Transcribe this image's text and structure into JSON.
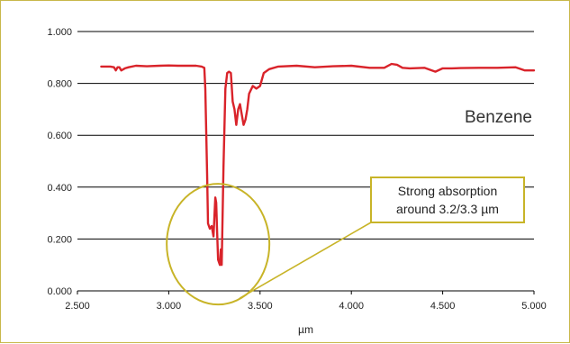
{
  "chart_data": {
    "type": "line",
    "title": "",
    "xlabel": "µm",
    "ylabel": "",
    "xlim": [
      2.5,
      5.0
    ],
    "ylim": [
      0.0,
      1.0
    ],
    "x_ticks": [
      "2.500",
      "3.000",
      "3.500",
      "4.000",
      "4.500",
      "5.000"
    ],
    "y_ticks": [
      "0.000",
      "0.200",
      "0.400",
      "0.600",
      "0.800",
      "1.000"
    ],
    "grid": "horizontal",
    "series_label": "Benzene",
    "series": [
      {
        "name": "Benzene",
        "color": "#d9232a",
        "x": [
          2.63,
          2.68,
          2.7,
          2.71,
          2.72,
          2.73,
          2.74,
          2.76,
          2.78,
          2.82,
          2.88,
          2.95,
          3.0,
          3.05,
          3.1,
          3.15,
          3.18,
          3.195,
          3.2,
          3.21,
          3.215,
          3.225,
          3.235,
          3.245,
          3.255,
          3.26,
          3.265,
          3.27,
          3.275,
          3.28,
          3.285,
          3.29,
          3.3,
          3.31,
          3.32,
          3.33,
          3.34,
          3.35,
          3.36,
          3.37,
          3.38,
          3.39,
          3.4,
          3.41,
          3.42,
          3.43,
          3.44,
          3.46,
          3.48,
          3.5,
          3.52,
          3.55,
          3.6,
          3.7,
          3.8,
          3.9,
          4.0,
          4.1,
          4.18,
          4.22,
          4.25,
          4.28,
          4.32,
          4.4,
          4.46,
          4.5,
          4.55,
          4.6,
          4.7,
          4.8,
          4.9,
          4.95,
          5.0
        ],
        "values": [
          0.865,
          0.865,
          0.862,
          0.85,
          0.862,
          0.862,
          0.85,
          0.858,
          0.862,
          0.868,
          0.866,
          0.868,
          0.869,
          0.868,
          0.868,
          0.868,
          0.865,
          0.86,
          0.78,
          0.45,
          0.26,
          0.24,
          0.25,
          0.21,
          0.36,
          0.34,
          0.23,
          0.12,
          0.11,
          0.1,
          0.16,
          0.1,
          0.48,
          0.78,
          0.84,
          0.845,
          0.84,
          0.73,
          0.7,
          0.64,
          0.7,
          0.72,
          0.68,
          0.64,
          0.66,
          0.7,
          0.76,
          0.79,
          0.78,
          0.79,
          0.84,
          0.855,
          0.865,
          0.868,
          0.862,
          0.866,
          0.868,
          0.86,
          0.86,
          0.875,
          0.872,
          0.86,
          0.858,
          0.86,
          0.845,
          0.858,
          0.858,
          0.859,
          0.86,
          0.86,
          0.862,
          0.85,
          0.85
        ]
      }
    ],
    "annotation": {
      "lines": [
        "Strong absorption",
        "around 3.2/3.3 µm"
      ],
      "color": "#c8b428",
      "target_x": 3.27,
      "target_y": 0.18
    }
  }
}
